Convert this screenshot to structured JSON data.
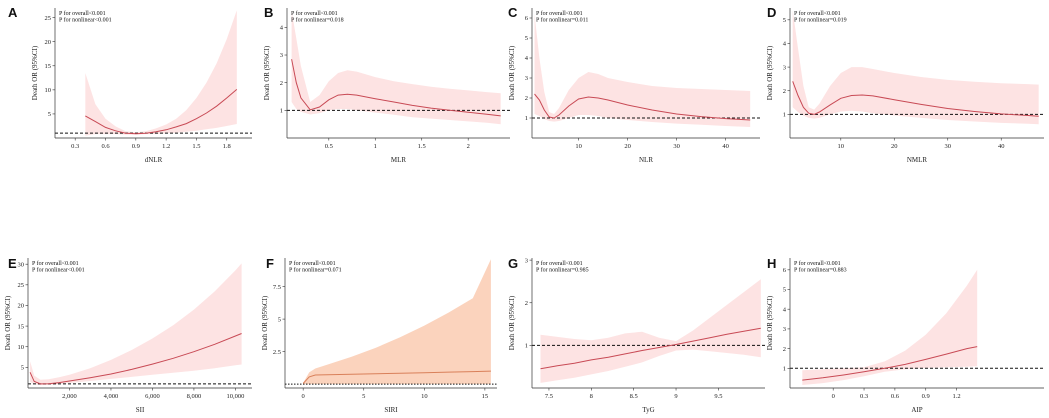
{
  "figure": {
    "panels": [
      "A",
      "B",
      "C",
      "D",
      "E",
      "F",
      "G",
      "H"
    ]
  },
  "chart_data": [
    {
      "panel": "A",
      "type": "line",
      "title": "",
      "xlabel": "dNLR",
      "ylabel": "Death OR (95%CI)",
      "stats": [
        "P for overall<0.001",
        "P for nonlinear<0.001"
      ],
      "xlim": [
        0.1,
        2.05
      ],
      "ylim": [
        0,
        27
      ],
      "xticks": [
        0.3,
        0.6,
        0.9,
        1.2,
        1.5,
        1.8
      ],
      "xtick_labels": [
        "0.3",
        "0.6",
        "0.9",
        "1.2",
        "1.5",
        "1.8"
      ],
      "yticks": [
        5,
        10,
        15,
        20,
        25
      ],
      "ytick_labels": [
        "5",
        "10",
        "15",
        "20",
        "25"
      ],
      "reference_line": 1,
      "series": [
        {
          "name": "OR",
          "x": [
            0.4,
            0.5,
            0.6,
            0.7,
            0.8,
            0.9,
            1.0,
            1.1,
            1.2,
            1.3,
            1.4,
            1.5,
            1.6,
            1.7,
            1.8,
            1.9
          ],
          "y": [
            4.6,
            3.4,
            2.2,
            1.5,
            1.0,
            0.9,
            1.0,
            1.3,
            1.7,
            2.3,
            3.0,
            4.0,
            5.2,
            6.6,
            8.3,
            10.1
          ]
        }
      ],
      "ci_lower": [
        0.5,
        0.8,
        0.8,
        0.8,
        0.7,
        0.7,
        0.8,
        0.8,
        1.0,
        1.1,
        1.3,
        1.5,
        1.8,
        2.1,
        2.5,
        2.9
      ],
      "ci_upper": [
        13.5,
        7.0,
        4.0,
        2.4,
        1.4,
        1.2,
        1.4,
        2.0,
        2.8,
        4.0,
        5.8,
        8.3,
        11.5,
        15.5,
        20.5,
        26.5
      ]
    },
    {
      "panel": "B",
      "type": "line",
      "title": "",
      "xlabel": "MLR",
      "ylabel": "Death OR (95%CI)",
      "stats": [
        "P for overall<0.001",
        "P for nonlinear=0.018"
      ],
      "xlim": [
        0.05,
        2.45
      ],
      "ylim": [
        0,
        4.7
      ],
      "xticks": [
        0.5,
        1,
        1.5,
        2
      ],
      "xtick_labels": [
        "0.5",
        "1",
        "1.5",
        "2"
      ],
      "yticks": [
        1,
        2,
        3,
        4
      ],
      "ytick_labels": [
        "1",
        "2",
        "3",
        "4"
      ],
      "reference_line": 1,
      "series": [
        {
          "name": "OR",
          "x": [
            0.1,
            0.15,
            0.2,
            0.3,
            0.4,
            0.5,
            0.6,
            0.7,
            0.8,
            1.0,
            1.2,
            1.4,
            1.6,
            1.8,
            2.0,
            2.2,
            2.35
          ],
          "y": [
            2.85,
            2.0,
            1.45,
            1.02,
            1.12,
            1.38,
            1.55,
            1.58,
            1.55,
            1.42,
            1.3,
            1.18,
            1.08,
            1.0,
            0.93,
            0.86,
            0.8
          ]
        }
      ],
      "ci_lower": [
        1.3,
        1.05,
        0.95,
        0.85,
        0.9,
        1.0,
        1.05,
        1.05,
        1.0,
        0.92,
        0.84,
        0.75,
        0.7,
        0.65,
        0.6,
        0.55,
        0.5
      ],
      "ci_upper": [
        4.6,
        3.6,
        2.6,
        1.3,
        1.55,
        2.05,
        2.35,
        2.45,
        2.4,
        2.2,
        2.05,
        1.95,
        1.85,
        1.78,
        1.72,
        1.66,
        1.62
      ]
    },
    {
      "panel": "C",
      "type": "line",
      "title": "",
      "xlabel": "NLR",
      "ylabel": "Death OR (95%CI)",
      "stats": [
        "P for overall<0.001",
        "P for nonlinear=0.011"
      ],
      "xlim": [
        0.5,
        47
      ],
      "ylim": [
        0,
        6.5
      ],
      "xticks": [
        10,
        20,
        30,
        40
      ],
      "xtick_labels": [
        "10",
        "20",
        "30",
        "40"
      ],
      "yticks": [
        1,
        2,
        3,
        4,
        5,
        6
      ],
      "ytick_labels": [
        "1",
        "2",
        "3",
        "4",
        "5",
        "6"
      ],
      "reference_line": 1,
      "series": [
        {
          "name": "OR",
          "x": [
            1,
            2,
            3,
            4,
            5,
            6,
            8,
            10,
            12,
            14,
            16,
            20,
            25,
            30,
            35,
            40,
            45
          ],
          "y": [
            2.2,
            1.9,
            1.4,
            1.05,
            1.0,
            1.15,
            1.6,
            1.95,
            2.05,
            2.0,
            1.9,
            1.65,
            1.4,
            1.2,
            1.07,
            0.97,
            0.9
          ]
        }
      ],
      "ci_lower": [
        1.2,
        1.1,
        0.95,
        0.85,
        0.82,
        0.85,
        1.0,
        1.15,
        1.15,
        1.1,
        1.0,
        0.9,
        0.8,
        0.72,
        0.66,
        0.6,
        0.55
      ],
      "ci_upper": [
        6.2,
        4.0,
        2.3,
        1.3,
        1.2,
        1.5,
        2.4,
        3.0,
        3.3,
        3.2,
        3.0,
        2.8,
        2.6,
        2.5,
        2.45,
        2.4,
        2.35
      ]
    },
    {
      "panel": "D",
      "type": "line",
      "title": "",
      "xlabel": "NMLR",
      "ylabel": "Death OR (95%CI)",
      "stats": [
        "P for overall<0.001",
        "P for nonlinear=0.019"
      ],
      "xlim": [
        0.5,
        48
      ],
      "ylim": [
        0,
        5.5
      ],
      "xticks": [
        10,
        20,
        30,
        40
      ],
      "xtick_labels": [
        "10",
        "20",
        "30",
        "40"
      ],
      "yticks": [
        1,
        2,
        3,
        4,
        5
      ],
      "ytick_labels": [
        "1",
        "2",
        "3",
        "4",
        "5"
      ],
      "reference_line": 1,
      "series": [
        {
          "name": "OR",
          "x": [
            1,
            2,
            3,
            4,
            5,
            6,
            8,
            10,
            12,
            14,
            16,
            20,
            25,
            30,
            35,
            40,
            45,
            47
          ],
          "y": [
            2.4,
            1.8,
            1.3,
            1.05,
            1.0,
            1.1,
            1.4,
            1.68,
            1.8,
            1.82,
            1.78,
            1.62,
            1.42,
            1.25,
            1.12,
            1.02,
            0.95,
            0.92
          ]
        }
      ],
      "ci_lower": [
        1.3,
        1.1,
        0.95,
        0.85,
        0.82,
        0.85,
        1.0,
        1.12,
        1.15,
        1.12,
        1.05,
        0.95,
        0.85,
        0.76,
        0.7,
        0.64,
        0.6,
        0.58
      ],
      "ci_upper": [
        5.4,
        3.8,
        2.2,
        1.3,
        1.2,
        1.45,
        2.2,
        2.75,
        3.0,
        3.0,
        2.92,
        2.75,
        2.58,
        2.46,
        2.38,
        2.32,
        2.28,
        2.26
      ]
    },
    {
      "panel": "E",
      "type": "line",
      "title": "",
      "xlabel": "SII",
      "ylabel": "Death OR (95%CI)",
      "stats": [
        "P for overall<0.001",
        "P for nonlinear<0.001"
      ],
      "xlim": [
        0,
        10800
      ],
      "ylim": [
        0,
        31.5
      ],
      "xticks": [
        2000,
        4000,
        6000,
        8000,
        10000
      ],
      "xtick_labels": [
        "2,000",
        "4,000",
        "6,000",
        "8,000",
        "10,000"
      ],
      "yticks": [
        5,
        10,
        15,
        20,
        25,
        30
      ],
      "ytick_labels": [
        "5",
        "10",
        "15",
        "20",
        "25",
        "30"
      ],
      "reference_line": 1,
      "series": [
        {
          "name": "OR",
          "x": [
            100,
            300,
            600,
            1000,
            1500,
            2000,
            3000,
            4000,
            5000,
            6000,
            7000,
            8000,
            9000,
            10000,
            10300
          ],
          "y": [
            3.8,
            1.6,
            1.0,
            1.05,
            1.3,
            1.7,
            2.5,
            3.4,
            4.5,
            5.8,
            7.2,
            8.8,
            10.6,
            12.6,
            13.2
          ]
        }
      ],
      "ci_lower": [
        1.5,
        0.9,
        0.7,
        0.75,
        0.95,
        1.2,
        1.7,
        2.2,
        2.7,
        3.2,
        3.7,
        4.2,
        4.8,
        5.5,
        5.7
      ],
      "ci_upper": [
        6.5,
        3.0,
        2.0,
        2.1,
        2.6,
        3.2,
        4.8,
        6.8,
        9.2,
        12.0,
        15.2,
        19.0,
        23.4,
        28.5,
        30.2
      ]
    },
    {
      "panel": "F",
      "type": "line",
      "title": "",
      "xlabel": "SIRI",
      "ylabel": "Death OR (95%CI)",
      "stats": [
        "P for overall<0.001",
        "P for nonlinear=0.071"
      ],
      "xlim": [
        -1.5,
        16
      ],
      "ylim": [
        -0.3,
        9.7
      ],
      "xticks": [
        0,
        5,
        10,
        15
      ],
      "xtick_labels": [
        "0",
        "5",
        "10",
        "15"
      ],
      "yticks": [
        2.5,
        5,
        7.5
      ],
      "ytick_labels": [
        "2.5",
        "5",
        "7.5"
      ],
      "reference_line": 0,
      "series": [
        {
          "name": "OR",
          "x": [
            0,
            0.5,
            1,
            2,
            4,
            6,
            8,
            10,
            12,
            14,
            15.5
          ],
          "y": [
            0.05,
            0.55,
            0.7,
            0.72,
            0.76,
            0.8,
            0.84,
            0.88,
            0.92,
            0.96,
            1.0
          ]
        }
      ],
      "ci_lower": [
        0,
        0,
        0,
        0,
        0,
        0,
        0,
        0,
        0,
        0,
        0
      ],
      "ci_upper": [
        0.1,
        0.9,
        1.2,
        1.5,
        2.1,
        2.8,
        3.6,
        4.5,
        5.5,
        6.6,
        9.6
      ]
    },
    {
      "panel": "G",
      "type": "line",
      "title": "",
      "xlabel": "TyG",
      "ylabel": "Death OR (95%CI)",
      "stats": [
        "P for overall<0.001",
        "P for nonlinear=0.985"
      ],
      "xlim": [
        7.3,
        10.05
      ],
      "ylim": [
        0,
        3.05
      ],
      "xticks": [
        7.5,
        8,
        8.5,
        9,
        9.5
      ],
      "xtick_labels": [
        "7.5",
        "8",
        "8.5",
        "9",
        "9.5"
      ],
      "yticks": [
        1,
        2,
        3
      ],
      "ytick_labels": [
        "1",
        "2",
        "3"
      ],
      "reference_line": 1,
      "series": [
        {
          "name": "OR",
          "x": [
            7.4,
            7.6,
            7.8,
            8.0,
            8.2,
            8.4,
            8.6,
            8.8,
            9.0,
            9.2,
            9.4,
            9.6,
            9.8,
            10.0
          ],
          "y": [
            0.45,
            0.52,
            0.58,
            0.66,
            0.72,
            0.8,
            0.88,
            0.95,
            1.02,
            1.1,
            1.18,
            1.26,
            1.33,
            1.4
          ]
        }
      ],
      "ci_lower": [
        0.12,
        0.18,
        0.24,
        0.32,
        0.4,
        0.5,
        0.6,
        0.75,
        0.88,
        0.9,
        0.86,
        0.82,
        0.78,
        0.72
      ],
      "ci_upper": [
        1.25,
        1.2,
        1.15,
        1.12,
        1.18,
        1.28,
        1.32,
        1.18,
        1.1,
        1.35,
        1.65,
        1.95,
        2.25,
        2.55
      ]
    },
    {
      "panel": "H",
      "type": "line",
      "title": "",
      "xlabel": "AIP",
      "ylabel": "Death OR (95%CI)",
      "stats": [
        "P for overall<0.001",
        "P for nonlinear=0.883"
      ],
      "xlim": [
        -0.42,
        2.05
      ],
      "ylim": [
        0,
        6.6
      ],
      "xticks": [
        0,
        0.3,
        0.6,
        0.9,
        1.2
      ],
      "xtick_labels": [
        "0",
        "0.3",
        "0.6",
        "0.9",
        "1.2"
      ],
      "yticks": [
        1,
        2,
        3,
        4,
        5,
        6
      ],
      "ytick_labels": [
        "1",
        "2",
        "3",
        "4",
        "5",
        "6"
      ],
      "reference_line": 1,
      "series": [
        {
          "name": "OR",
          "x": [
            -0.3,
            -0.1,
            0.1,
            0.3,
            0.5,
            0.7,
            0.9,
            1.1,
            1.3,
            1.4
          ],
          "y": [
            0.4,
            0.52,
            0.66,
            0.82,
            1.0,
            1.2,
            1.45,
            1.72,
            2.0,
            2.1
          ]
        }
      ],
      "ci_lower": [
        0.15,
        0.25,
        0.4,
        0.6,
        0.82,
        0.95,
        1.02,
        1.05,
        1.08,
        1.1
      ],
      "ci_upper": [
        0.9,
        0.95,
        1.0,
        1.05,
        1.35,
        1.9,
        2.7,
        3.8,
        5.2,
        6.0
      ]
    }
  ]
}
